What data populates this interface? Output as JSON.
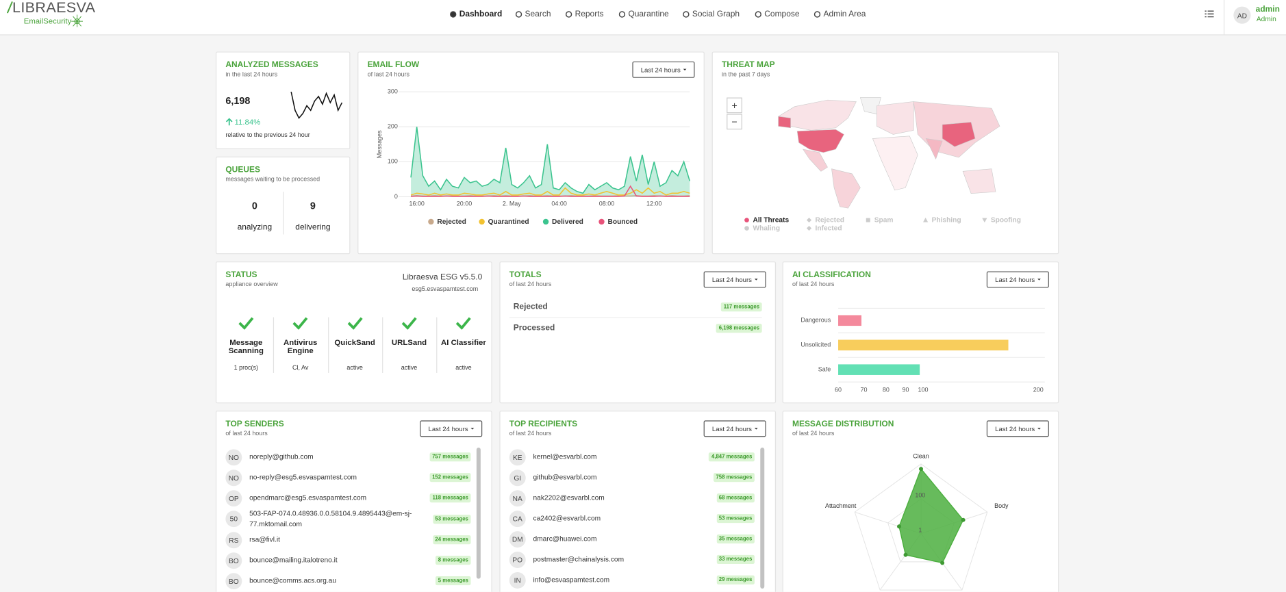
{
  "header": {
    "logo": "LIBRAESVA",
    "logo_sub": "EmailSecurity",
    "nav": [
      "Dashboard",
      "Search",
      "Reports",
      "Quarantine",
      "Social Graph",
      "Compose",
      "Admin Area"
    ],
    "user": {
      "initials": "AD",
      "name": "admin",
      "role": "Admin"
    }
  },
  "analyzed_messages": {
    "title": "ANALYZED MESSAGES",
    "subtitle": "in the last 24 hours",
    "total": "6,198",
    "change": "11.84%",
    "note": "relative to the previous 24 hour",
    "sparkline": [
      90,
      30,
      5,
      20,
      45,
      30,
      60,
      75,
      50,
      85,
      55,
      80,
      30,
      55
    ]
  },
  "queues": {
    "title": "QUEUES",
    "subtitle": "messages waiting to be processed",
    "items": [
      {
        "value": 0,
        "label": "analyzing"
      },
      {
        "value": 9,
        "label": "delivering"
      }
    ]
  },
  "email_flow": {
    "title": "EMAIL FLOW",
    "subtitle": "of last 24 hours",
    "period": "Last 24 hours",
    "chart": {
      "type": "line",
      "y_label": "Messages",
      "grid": true,
      "ylim": [
        0,
        300
      ],
      "yticks": [
        0,
        100,
        200,
        300
      ],
      "categories": [
        null,
        "16:00",
        null,
        null,
        null,
        null,
        null,
        null,
        null,
        "20:00",
        null,
        null,
        null,
        null,
        null,
        null,
        null,
        "2. May",
        null,
        null,
        null,
        null,
        null,
        null,
        null,
        "04:00",
        null,
        null,
        null,
        null,
        null,
        null,
        null,
        "08:00",
        null,
        null,
        null,
        null,
        null,
        null,
        null,
        "12:00",
        null,
        null,
        null,
        null,
        null,
        null
      ],
      "series": [
        {
          "name": "Rejected",
          "color": "#c8a98c",
          "values": [
            2,
            3,
            2,
            2,
            3,
            2,
            2,
            3,
            2,
            2,
            3,
            2,
            2,
            2,
            3,
            2,
            3,
            2,
            2,
            2,
            3,
            2,
            2,
            3,
            2,
            2,
            2,
            3,
            2,
            2,
            2,
            3,
            2,
            2,
            2,
            3,
            2,
            2,
            3,
            2,
            2,
            3,
            2,
            2,
            3,
            2,
            2,
            3
          ]
        },
        {
          "name": "Quarantined",
          "color": "#f2c230",
          "values": [
            5,
            10,
            8,
            5,
            10,
            5,
            8,
            5,
            5,
            10,
            8,
            5,
            5,
            8,
            10,
            5,
            15,
            5,
            5,
            8,
            10,
            5,
            5,
            15,
            5,
            5,
            25,
            10,
            5,
            5,
            8,
            5,
            10,
            15,
            10,
            5,
            5,
            10,
            20,
            10,
            25,
            10,
            15,
            5,
            10,
            10,
            15,
            10
          ]
        },
        {
          "name": "Delivered",
          "color": "#3cc48f",
          "area": true,
          "values": [
            55,
            200,
            60,
            30,
            45,
            20,
            50,
            30,
            25,
            55,
            40,
            45,
            30,
            35,
            50,
            40,
            140,
            35,
            25,
            40,
            60,
            25,
            35,
            150,
            25,
            20,
            40,
            25,
            15,
            10,
            35,
            20,
            30,
            40,
            25,
            20,
            30,
            115,
            45,
            120,
            35,
            100,
            30,
            40,
            75,
            60,
            100,
            45
          ]
        },
        {
          "name": "Bounced",
          "color": "#e8537a",
          "values": [
            1,
            2,
            1,
            1,
            1,
            1,
            2,
            1,
            1,
            1,
            1,
            1,
            1,
            2,
            1,
            1,
            1,
            1,
            1,
            2,
            1,
            1,
            1,
            1,
            1,
            1,
            2,
            1,
            1,
            1,
            1,
            1,
            1,
            1,
            1,
            1,
            2,
            30,
            2,
            1,
            1,
            1,
            2,
            1,
            1,
            1,
            1,
            1
          ]
        }
      ]
    }
  },
  "threat_map": {
    "title": "THREAT MAP",
    "subtitle": "in the past 7 days",
    "zoom_in": "+",
    "zoom_out": "−",
    "legend": [
      "All Threats",
      "Rejected",
      "Spam",
      "Phishing",
      "Spoofing",
      "Whaling",
      "Infected"
    ]
  },
  "status": {
    "title": "STATUS",
    "subtitle": "appliance overview",
    "version": "Libraesva ESG v5.5.0",
    "host": "esg5.esvaspamtest.com",
    "items": [
      {
        "name": "Message Scanning",
        "detail": "1 proc(s)"
      },
      {
        "name": "Antivirus Engine",
        "detail": "Cl, Av"
      },
      {
        "name": "QuickSand",
        "detail": "active"
      },
      {
        "name": "URLSand",
        "detail": "active"
      },
      {
        "name": "AI Classifier",
        "detail": "active"
      }
    ]
  },
  "totals": {
    "title": "TOTALS",
    "subtitle": "of last 24 hours",
    "period": "Last 24 hours",
    "rows": [
      {
        "label": "Rejected",
        "count": "117 messages"
      },
      {
        "label": "Processed",
        "count": "6,198 messages"
      }
    ]
  },
  "ai_classification": {
    "title": "AI CLASSIFICATION",
    "subtitle": "of last 24 hours",
    "period": "Last 24 hours",
    "chart": {
      "type": "bar",
      "orientation": "horizontal",
      "log_scale": true,
      "categories": [
        "Dangerous",
        "Unsolicited",
        "Safe"
      ],
      "values": [
        69,
        167,
        98
      ],
      "colors": [
        "#f4899c",
        "#f8cd5c",
        "#62e0b4"
      ],
      "xlim": [
        60,
        200
      ],
      "xticks": [
        60,
        70,
        80,
        90,
        100,
        200
      ]
    }
  },
  "top_senders": {
    "title": "TOP SENDERS",
    "subtitle": "of last 24 hours",
    "period": "Last 24 hours",
    "rows": [
      {
        "initials": "NO",
        "email": "noreply@github.com",
        "count": "757 messages"
      },
      {
        "initials": "NO",
        "email": "no-reply@esg5.esvaspamtest.com",
        "count": "152 messages"
      },
      {
        "initials": "OP",
        "email": "opendmarc@esg5.esvaspamtest.com",
        "count": "118 messages"
      },
      {
        "initials": "50",
        "email": "503-FAP-074.0.48936.0.0.58104.9.4895443@em-sj-77.mktomail.com",
        "count": "53 messages"
      },
      {
        "initials": "RS",
        "email": "rsa@fivl.it",
        "count": "24 messages"
      },
      {
        "initials": "BO",
        "email": "bounce@mailing.italotreno.it",
        "count": "8 messages"
      },
      {
        "initials": "BO",
        "email": "bounce@comms.acs.org.au",
        "count": "5 messages"
      }
    ]
  },
  "top_recipients": {
    "title": "TOP RECIPIENTS",
    "subtitle": "of last 24 hours",
    "period": "Last 24 hours",
    "rows": [
      {
        "initials": "KE",
        "email": "kernel@esvarbl.com",
        "count": "4,847 messages"
      },
      {
        "initials": "GI",
        "email": "github@esvarbl.com",
        "count": "758 messages"
      },
      {
        "initials": "NA",
        "email": "nak2202@esvarbl.com",
        "count": "68 messages"
      },
      {
        "initials": "CA",
        "email": "ca2402@esvarbl.com",
        "count": "53 messages"
      },
      {
        "initials": "DM",
        "email": "dmarc@huawei.com",
        "count": "35 messages"
      },
      {
        "initials": "PO",
        "email": "postmaster@chainalysis.com",
        "count": "33 messages"
      },
      {
        "initials": "IN",
        "email": "info@esvaspamtest.com",
        "count": "29 messages"
      }
    ]
  },
  "message_distribution": {
    "title": "MESSAGE DISTRIBUTION",
    "subtitle": "of last 24 hours",
    "period": "Last 24 hours",
    "chart": {
      "type": "radar",
      "log_scale": true,
      "categories": [
        "Clean",
        "Body",
        null,
        null,
        "Attachment"
      ],
      "values": [
        5200,
        350,
        120,
        32,
        21
      ],
      "color": "#4caf3f",
      "rlim": [
        1,
        10000
      ],
      "rticks": [
        1,
        100
      ]
    }
  }
}
